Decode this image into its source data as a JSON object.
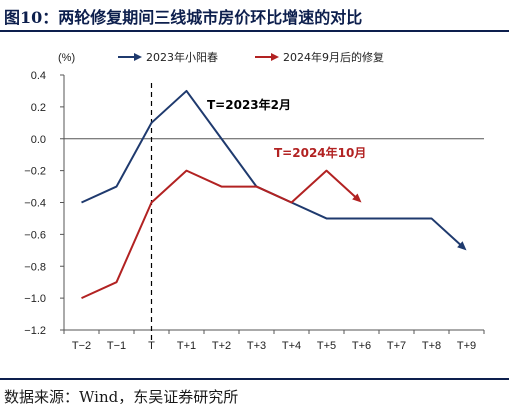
{
  "figure": {
    "title": "图10：两轮修复期间三线城市房价环比增速的对比",
    "source": "数据来源：Wind，东吴证券研究所"
  },
  "colors": {
    "navy": "#1f3a6e",
    "red": "#b22222",
    "axis": "#555555"
  },
  "chart_data": {
    "type": "line",
    "unit_label": "(%)",
    "categories": [
      "T−2",
      "T−1",
      "T",
      "T+1",
      "T+2",
      "T+3",
      "T+4",
      "T+5",
      "T+6",
      "T+7",
      "T+8",
      "T+9"
    ],
    "ylim": [
      -1.2,
      0.4
    ],
    "yticks": [
      "0.4",
      "0.2",
      "0.0",
      "−0.2",
      "−0.4",
      "−0.6",
      "−0.8",
      "−1.0",
      "−1.2"
    ],
    "ytick_values": [
      0.4,
      0.2,
      0.0,
      -0.2,
      -0.4,
      -0.6,
      -0.8,
      -1.0,
      -1.2
    ],
    "grid": false,
    "legend_position": "top",
    "vertical_marker_category": "T",
    "series": [
      {
        "name": "2023年小阳春",
        "color": "#1f3a6e",
        "values": [
          -0.4,
          -0.3,
          0.1,
          0.3,
          0.0,
          -0.3,
          -0.4,
          -0.5,
          -0.5,
          -0.5,
          -0.5,
          -0.7
        ]
      },
      {
        "name": "2024年9月后的修复",
        "color": "#b22222",
        "values": [
          -1.0,
          -0.9,
          -0.4,
          -0.2,
          -0.3,
          -0.3,
          -0.4,
          -0.2,
          -0.4,
          null,
          null,
          null
        ]
      }
    ],
    "annotations": [
      {
        "text": "T=2023年2月",
        "color": "#000000"
      },
      {
        "text": "T=2024年10月",
        "color": "#b22222"
      }
    ]
  }
}
